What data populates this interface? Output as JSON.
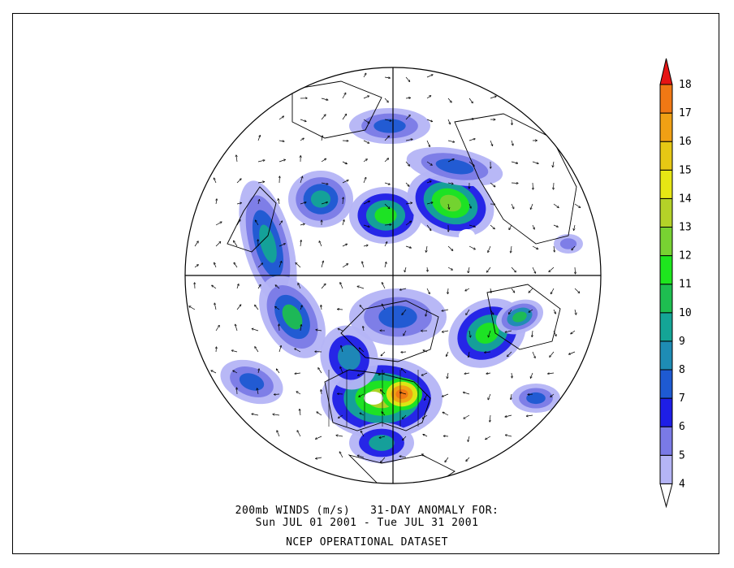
{
  "map": {
    "projection": "north-polar-stereographic",
    "variable": "200mb wind speed anomaly",
    "units": "m/s",
    "land_color": "#ffffff",
    "coast_color": "#000000"
  },
  "colorbar": {
    "levels": [
      "4",
      "5",
      "6",
      "7",
      "8",
      "9",
      "10",
      "11",
      "12",
      "13",
      "14",
      "15",
      "16",
      "17",
      "18"
    ],
    "colors": [
      "#ffffff",
      "#b4b4f5",
      "#7a7ae6",
      "#1e1ee6",
      "#1e5ad2",
      "#1e8cb4",
      "#14a596",
      "#1ebe50",
      "#1ee61e",
      "#78d232",
      "#b4d228",
      "#e6e614",
      "#e6c814",
      "#f0a014",
      "#f07814",
      "#e61414"
    ]
  },
  "caption": {
    "line1": "200mb WINDS (m/s)   31-DAY ANOMALY FOR:",
    "line2": "Sun JUL 01 2001 - Tue JUL 31 2001",
    "line3": "NCEP OPERATIONAL DATASET"
  }
}
